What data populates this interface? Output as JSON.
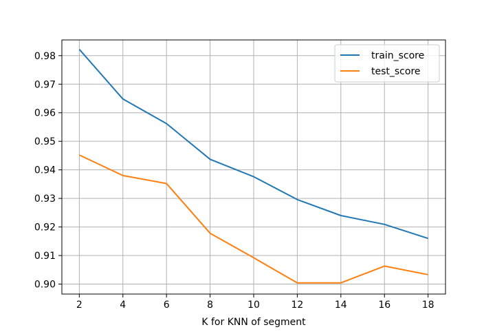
{
  "chart_data": {
    "type": "line",
    "title": "",
    "xlabel": "K for KNN of segment",
    "ylabel": "",
    "x": [
      2,
      4,
      6,
      8,
      10,
      12,
      14,
      16,
      18
    ],
    "xticks": [
      2,
      4,
      6,
      8,
      10,
      12,
      14,
      16,
      18
    ],
    "xtick_labels": [
      "2",
      "4",
      "6",
      "8",
      "10",
      "12",
      "14",
      "16",
      "18"
    ],
    "xlim": [
      1.2,
      18.8
    ],
    "yticks": [
      0.9,
      0.91,
      0.92,
      0.93,
      0.94,
      0.95,
      0.96,
      0.97,
      0.98
    ],
    "ytick_labels": [
      "0.90",
      "0.91",
      "0.92",
      "0.93",
      "0.94",
      "0.95",
      "0.96",
      "0.97",
      "0.98"
    ],
    "ylim": [
      0.8965,
      0.9855
    ],
    "grid": true,
    "legend_position": "top-right",
    "series": [
      {
        "name": "train_score",
        "color": "#1f77b4",
        "values": [
          0.9822,
          0.9648,
          0.9562,
          0.9437,
          0.9376,
          0.9296,
          0.924,
          0.9209,
          0.916
        ]
      },
      {
        "name": "test_score",
        "color": "#ff7f0e",
        "values": [
          0.9452,
          0.938,
          0.9352,
          0.9178,
          0.9092,
          0.9004,
          0.9004,
          0.9063,
          0.9033
        ]
      }
    ]
  }
}
